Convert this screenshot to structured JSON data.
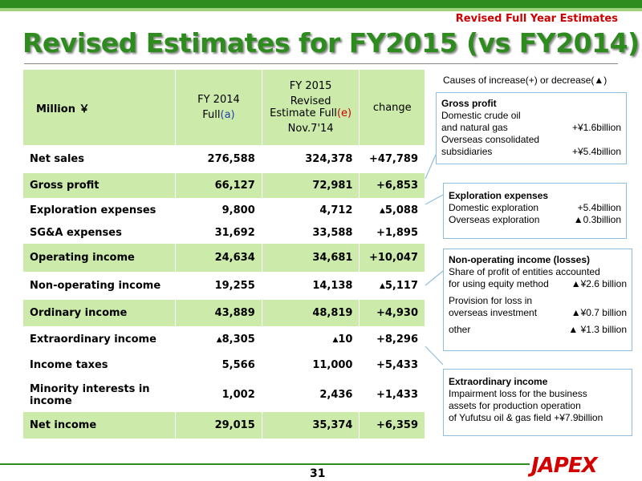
{
  "header": {
    "subtitle": "Revised Full Year Estimates",
    "title": "Revised Estimates for FY2015 (vs FY2014)"
  },
  "table": {
    "col_unit": "Million ￥",
    "col_fy2014_line1": "FY 2014",
    "col_fy2014_line2": "Full",
    "col_fy2014_tag": "(a)",
    "col_fy2015_line1": "FY 2015",
    "col_fy2015_line2": "Revised",
    "col_fy2015_line3": "Estimate Full",
    "col_fy2015_tag": "(e)",
    "col_fy2015_line4": "Nov.7'14",
    "col_change": "change",
    "rows": [
      {
        "label": "Net sales",
        "fy2014": "276,588",
        "fy2015": "324,378",
        "change": "+47,789"
      },
      {
        "label": "Gross profit",
        "fy2014": "66,127",
        "fy2015": "72,981",
        "change": "+6,853"
      },
      {
        "label": "Exploration expenses",
        "fy2014": "9,800",
        "fy2015": "4,712",
        "change": "5,088"
      },
      {
        "label": "SG&A expenses",
        "fy2014": "31,692",
        "fy2015": "33,588",
        "change": "+1,895"
      },
      {
        "label": "Operating income",
        "fy2014": "24,634",
        "fy2015": "34,681",
        "change": "+10,047"
      },
      {
        "label": "Non-operating income",
        "fy2014": "19,255",
        "fy2015": "14,138",
        "change": "5,117"
      },
      {
        "label": "Ordinary income",
        "fy2014": "43,889",
        "fy2015": "48,819",
        "change": "+4,930"
      },
      {
        "label": "Extraordinary income",
        "fy2014": "8,305",
        "fy2015": "10",
        "change": "+8,296"
      },
      {
        "label": "Income taxes",
        "fy2014": "5,566",
        "fy2015": "11,000",
        "change": "+5,433"
      },
      {
        "label": "Minority interests in income",
        "fy2014": "1,002",
        "fy2015": "2,436",
        "change": "+1,433"
      },
      {
        "label": "Net income",
        "fy2014": "29,015",
        "fy2015": "35,374",
        "change": "+6,359"
      }
    ]
  },
  "causes": {
    "heading": "Causes of increase(+)  or decrease(▲)",
    "gross_profit": {
      "title": "Gross profit",
      "l1": "Domestic crude oil",
      "l2": "and natural gas",
      "v2": "+¥1.6billion",
      "l3": "Overseas consolidated",
      "l4": "subsidiaries",
      "v4": "+¥5.4billion"
    },
    "exploration": {
      "title": "Exploration expenses",
      "l1": "Domestic exploration",
      "v1": "+5.4billion",
      "l2": "Overseas exploration",
      "v2": "▲0.3billion"
    },
    "nonop": {
      "title": "Non-operating income (losses)",
      "l1": "Share of profit of entities accounted",
      "l2": "for using equity method",
      "v2": "▲¥2.6 billion",
      "l3": "Provision for loss in",
      "l4": "overseas investment",
      "v4": "▲¥0.7 billion",
      "l5": "other",
      "v5": "▲ ¥1.3 billion"
    },
    "extraordinary": {
      "title": "Extraordinary income",
      "l1": "Impairment loss for the business",
      "l2": "assets for production operation",
      "l3": "of  Yufutsu oil & gas field  +¥7.9billion"
    }
  },
  "footer": {
    "page": "31",
    "logo": "JAPEX"
  },
  "colors": {
    "brand_green": "#2e8b1e",
    "row_green": "#ccebaa",
    "accent_red": "#cc0000"
  }
}
